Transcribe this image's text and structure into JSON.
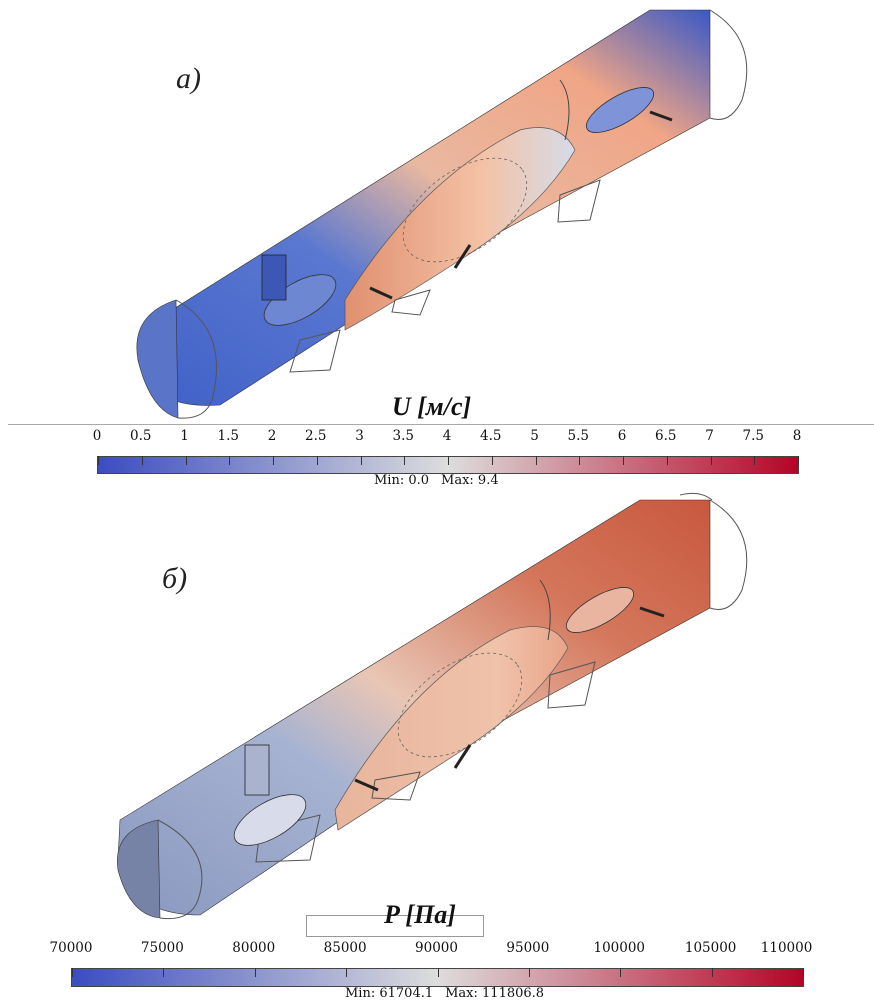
{
  "panels": [
    {
      "label": "а)",
      "colorbar": {
        "title": "U [м/с]",
        "ticks": [
          "0",
          "0.5",
          "1",
          "1.5",
          "2",
          "2.5",
          "3",
          "3.5",
          "4",
          "4.5",
          "5",
          "5.5",
          "6",
          "6.5",
          "7",
          "7.5",
          "8"
        ],
        "min_text": "Min: 0.0",
        "max_text": "Max: 9.4",
        "colors": {
          "low": "#3b4cc0",
          "mid": "#dddddd",
          "high": "#b40426"
        }
      }
    },
    {
      "label": "б)",
      "colorbar": {
        "title": "P [Па]",
        "ticks": [
          "70000",
          "75000",
          "80000",
          "85000",
          "90000",
          "95000",
          "100000",
          "105000",
          "110000"
        ],
        "min_text": "Min: 61704.1",
        "max_text": "Max: 111806.8",
        "colors": {
          "low": "#3b4cc0",
          "mid": "#dddddd",
          "high": "#b40426"
        }
      }
    }
  ]
}
